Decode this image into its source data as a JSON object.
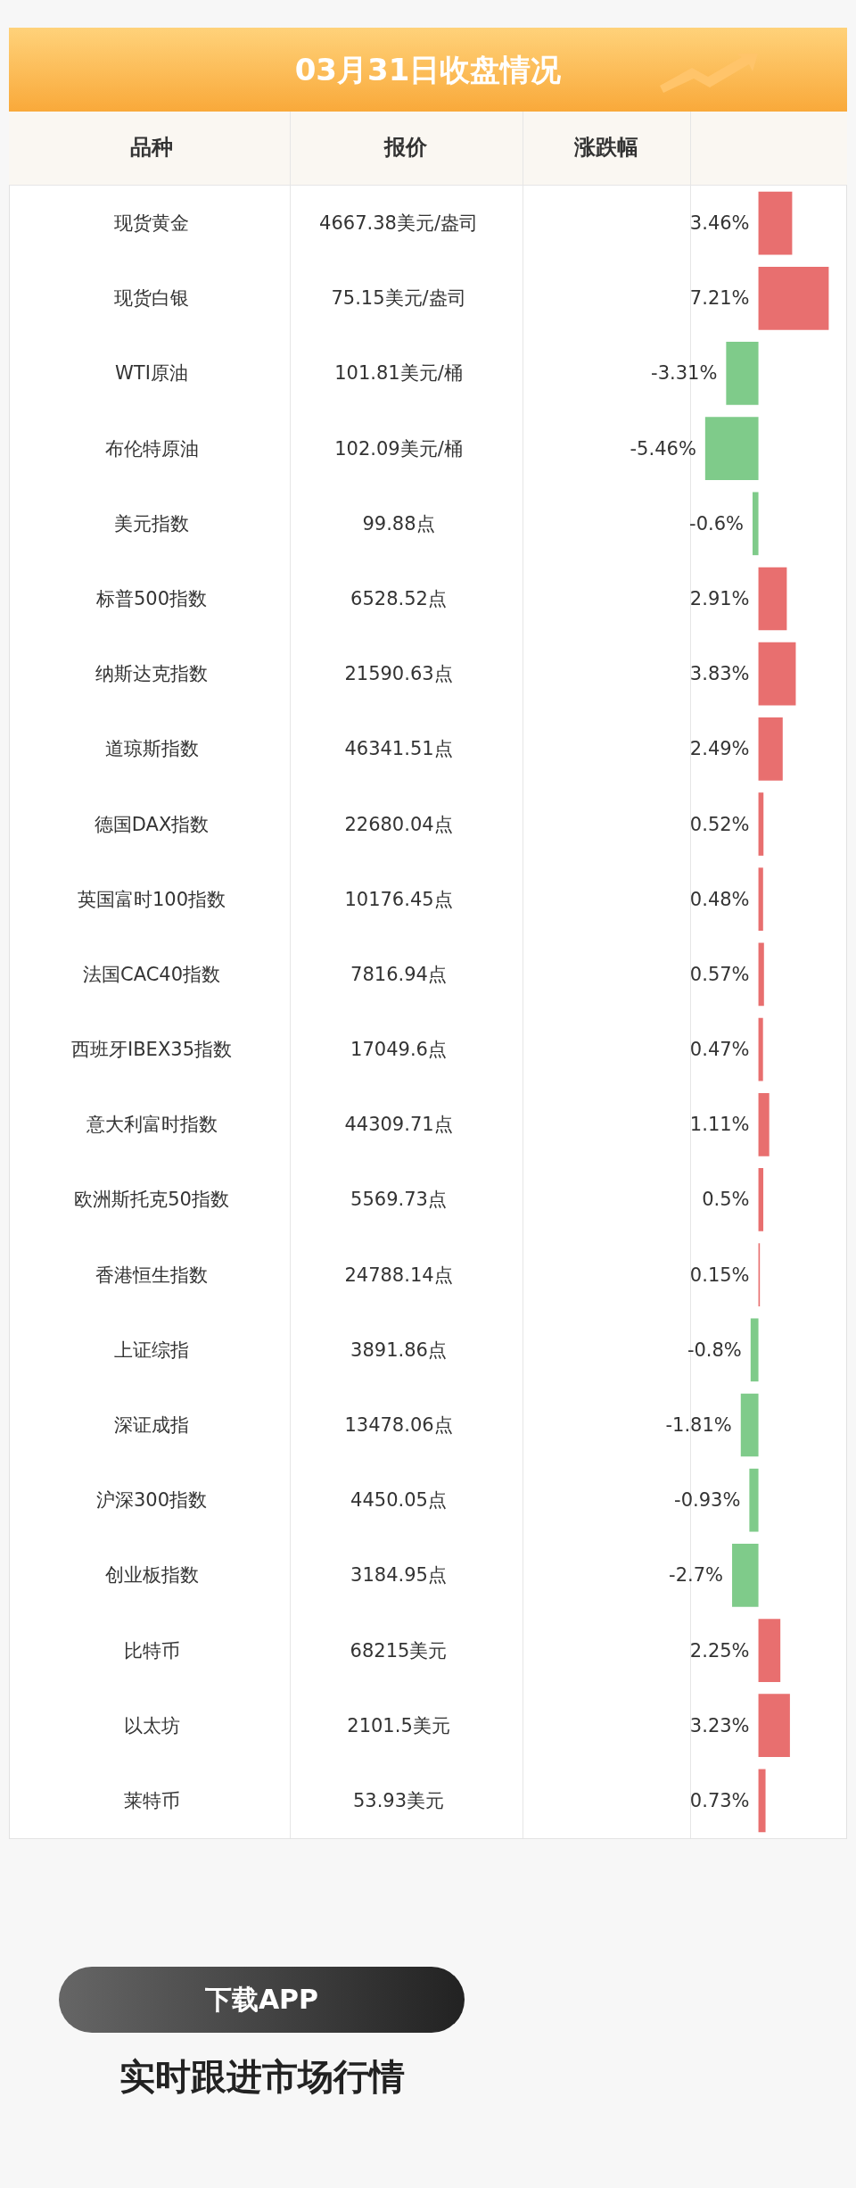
{
  "chart_data": {
    "type": "bar",
    "orientation": "horizontal",
    "title": "03月31日收盘情况",
    "categories": [
      "现货黄金",
      "现货白银",
      "WTI原油",
      "布伦特原油",
      "美元指数",
      "标普500指数",
      "纳斯达克指数",
      "道琼斯指数",
      "德国DAX指数",
      "英国富时100指数",
      "法国CAC40指数",
      "西班牙IBEX35指数",
      "意大利富时指数",
      "欧洲斯托克50指数",
      "香港恒生指数",
      "上证综指",
      "深证成指",
      "沪深300指数",
      "创业板指数",
      "比特币",
      "以太坊",
      "莱特币"
    ],
    "values": [
      3.46,
      7.21,
      -3.31,
      -5.46,
      -0.6,
      2.91,
      3.83,
      2.49,
      0.52,
      0.48,
      0.57,
      0.47,
      1.11,
      0.5,
      0.15,
      -0.8,
      -1.81,
      -0.93,
      -2.7,
      2.25,
      3.23,
      0.73
    ],
    "value_labels": [
      "3.46%",
      "7.21%",
      "-3.31%",
      "-5.46%",
      "-0.6%",
      "2.91%",
      "3.83%",
      "2.49%",
      "0.52%",
      "0.48%",
      "0.57%",
      "0.47%",
      "1.11%",
      "0.5%",
      "0.15%",
      "-0.8%",
      "-1.81%",
      "-0.93%",
      "-2.7%",
      "2.25%",
      "3.23%",
      "0.73%"
    ],
    "colors": [
      "#e86f6f",
      "#e86f6f",
      "#7fcb8a",
      "#7fcb8a",
      "#7fcb8a",
      "#e86f6f",
      "#e86f6f",
      "#e86f6f",
      "#e86f6f",
      "#e86f6f",
      "#e86f6f",
      "#e86f6f",
      "#e86f6f",
      "#e86f6f",
      "#e86f6f",
      "#7fcb8a",
      "#7fcb8a",
      "#7fcb8a",
      "#7fcb8a",
      "#e86f6f",
      "#e86f6f",
      "#e86f6f"
    ],
    "xlim": [
      -7,
      9
    ],
    "tick_labels": "y",
    "annotations": [
      "品种",
      "报价",
      "涨跌幅",
      "4667.38美元/盎司",
      "75.15美元/盎司",
      "101.81美元/桶",
      "102.09美元/桶",
      "99.88点",
      "6528.52点",
      "21590.63点",
      "46341.51点",
      "22680.04点",
      "10176.45点",
      "7816.94点",
      "17049.6点",
      "44309.71点",
      "5569.73点",
      "24788.14点",
      "3891.86点",
      "13478.06点",
      "4450.05点",
      "3184.95点",
      "68215美元",
      "2101.5美元",
      "53.93美元",
      "下载APP",
      "实时跟进市场行情"
    ]
  }
}
